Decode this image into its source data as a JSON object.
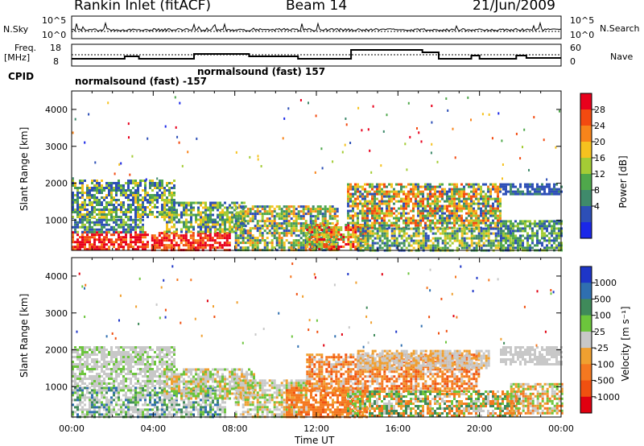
{
  "header": {
    "station": "Rankin Inlet (fitACF)",
    "beam": "Beam 14",
    "date": "21/Jun/2009"
  },
  "status_panel": {
    "nsky_label": "N.Sky",
    "nsky_ticks": [
      "10^5",
      "10^0"
    ],
    "nsearch_label": "N.Search",
    "nsearch_ticks": [
      "10^5",
      "10^0"
    ],
    "freq_label": "Freq.",
    "freq_unit": "[MHz]",
    "freq_ticks": [
      "18",
      "8"
    ],
    "nave_label": "Nave",
    "nave_ticks": [
      "60",
      "0"
    ],
    "cpid_label": "CPID",
    "cpid_entries": [
      "normalsound (fast) -157",
      "normalsound (fast) 157"
    ]
  },
  "chart_data": [
    {
      "type": "heatmap",
      "ylabel": "Slant Range [km]",
      "ylim": [
        180,
        4500
      ],
      "yticks": [
        1000,
        2000,
        3000,
        4000
      ],
      "xlim_hours": [
        0,
        24
      ],
      "colorbar": {
        "label": "Power [dB]",
        "ticks": [
          "28",
          "24",
          "20",
          "16",
          "12",
          "8",
          "4"
        ],
        "colors": [
          "#e8001c",
          "#f34a10",
          "#f8841a",
          "#f6c21f",
          "#a4cc35",
          "#4fa84b",
          "#3f8a6b",
          "#2d4fb7",
          "#1a27e8"
        ]
      }
    },
    {
      "type": "heatmap",
      "ylabel": "Slant Range [km]",
      "ylim": [
        180,
        4500
      ],
      "yticks": [
        1000,
        2000,
        3000,
        4000
      ],
      "xlim_hours": [
        0,
        24
      ],
      "colorbar": {
        "label": "Velocity [m s⁻¹]",
        "ticks": [
          "1000",
          "500",
          "100",
          "25",
          "-25",
          "-100",
          "-500",
          "-1000"
        ],
        "colors": [
          "#1e36c8",
          "#2f6fb0",
          "#3f8a5a",
          "#6cc53c",
          "#c8c8c8",
          "#f0a030",
          "#f57820",
          "#f05010",
          "#e00010"
        ]
      }
    }
  ],
  "xaxis": {
    "ticks": [
      "00:00",
      "04:00",
      "08:00",
      "12:00",
      "16:00",
      "20:00",
      "00:00"
    ],
    "label": "Time UT"
  }
}
